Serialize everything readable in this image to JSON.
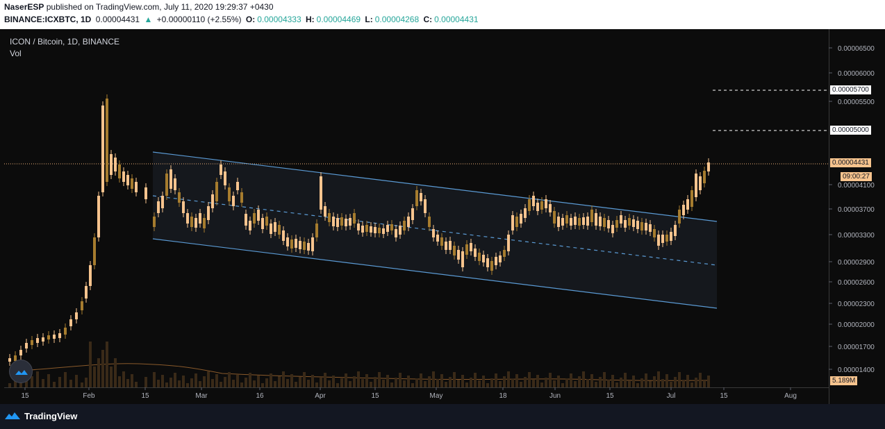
{
  "header": {
    "author": "NaserESP",
    "publish_text": "published on TradingView.com, July 11, 2020 19:29:37 +0430",
    "symbol": "BINANCE:ICXBTC, 1D",
    "last": "0.00004431",
    "change": "+0.00000110 (+2.55%)",
    "o_label": "O:",
    "o_value": "0.00004333",
    "h_label": "H:",
    "h_value": "0.00004469",
    "l_label": "L:",
    "l_value": "0.00004268",
    "c_label": "C:",
    "c_value": "0.00004431"
  },
  "legend": {
    "title": "ICON / Bitcoin, 1D, BINANCE",
    "vol": "Vol"
  },
  "price_scale": {
    "ticks": [
      "0.00006500",
      "0.00006000",
      "0.00005500",
      "0.00004100",
      "0.00003700",
      "0.00003300",
      "0.00002900",
      "0.00002600",
      "0.00002300",
      "0.00002000",
      "0.00001700",
      "0.00001400"
    ],
    "tags": {
      "level_5700": "0.00005700",
      "level_5000": "0.00005000",
      "last_price": "0.00004431",
      "countdown": "09:00:27",
      "volume": "5.189M"
    }
  },
  "time_scale": {
    "ticks": [
      "15",
      "Feb",
      "15",
      "Mar",
      "16",
      "Apr",
      "15",
      "May",
      "18",
      "Jun",
      "15",
      "Jul",
      "15",
      "Aug"
    ]
  },
  "footer": {
    "brand": "TradingView"
  },
  "icons": {
    "logo": "tradingview-logo-icon",
    "badge": "tradingview-cloud-icon"
  },
  "colors": {
    "candle": "#f7c48e",
    "candle_dim": "#a67c2e",
    "channel": "#5b9bd5",
    "last_price": "#f0b27a",
    "up": "#26a69a"
  }
}
